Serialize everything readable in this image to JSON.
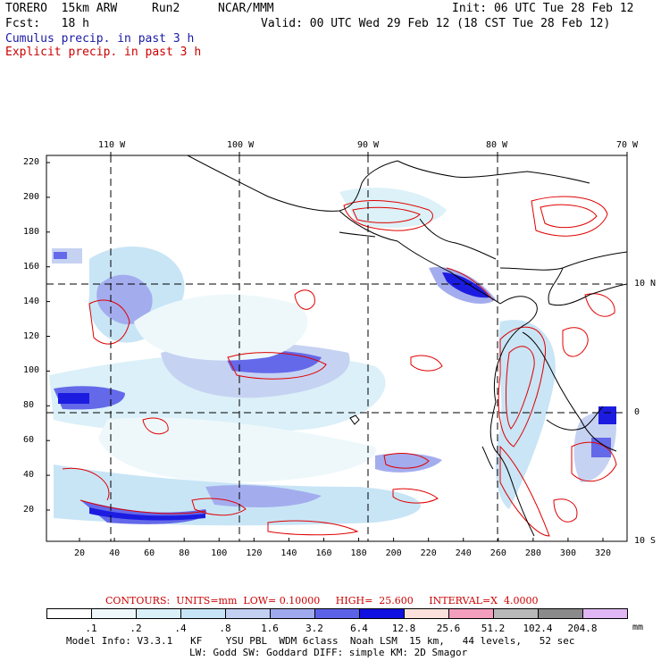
{
  "header": {
    "model": "TORERO  15km ARW",
    "run": "Run2",
    "org": "NCAR/MMM",
    "init": "Init: 06 UTC Tue 28 Feb 12",
    "fcst_label": "Fcst:   18 h",
    "valid": "Valid: 00 UTC Wed 29 Feb 12 (18 CST Tue 28 Feb 12)",
    "field1": "Cumulus precip. in past 3 h",
    "field2": "Explicit precip. in past 3 h"
  },
  "map": {
    "top_lon_labels": [
      "110 W",
      "100 W",
      "90 W",
      "80 W",
      "70 W"
    ],
    "left_y_labels": [
      "220",
      "200",
      "180",
      "160",
      "140",
      "120",
      "100",
      "80",
      "60",
      "40",
      "20"
    ],
    "bottom_x_labels": [
      "20",
      "40",
      "60",
      "80",
      "100",
      "120",
      "140",
      "160",
      "180",
      "200",
      "220",
      "240",
      "260",
      "280",
      "300",
      "320"
    ],
    "right_lat_labels": [
      "10 N",
      "0",
      "10 S"
    ]
  },
  "contours": {
    "label": "CONTOURS:",
    "units": "UNITS=mm",
    "low": "LOW= 0.10000",
    "high": "HIGH=  25.600",
    "interval": "INTERVAL=X  4.0000"
  },
  "legend": {
    "levels": [
      ".1",
      ".2",
      ".4",
      ".8",
      "1.6",
      "3.2",
      "6.4",
      "12.8",
      "25.6",
      "51.2",
      "102.4",
      "204.8"
    ],
    "unit": "mm",
    "colors": [
      "#ffffff",
      "#eef8fb",
      "#daf0f8",
      "#c6e4f6",
      "#c4d0f2",
      "#9fa9ee",
      "#5c62e8",
      "#1010e0",
      "#fbe0dc",
      "#f49ebd",
      "#b8b8b8",
      "#8a8a8a",
      "#e0b6f4"
    ]
  },
  "model_info": {
    "line1": "Model Info: V3.3.1   KF    YSU PBL  WDM 6class  Noah LSM  15 km,   44 levels,   52 sec",
    "line2": "LW: Godd SW: Goddard DIFF: simple KM: 2D Smagor"
  }
}
